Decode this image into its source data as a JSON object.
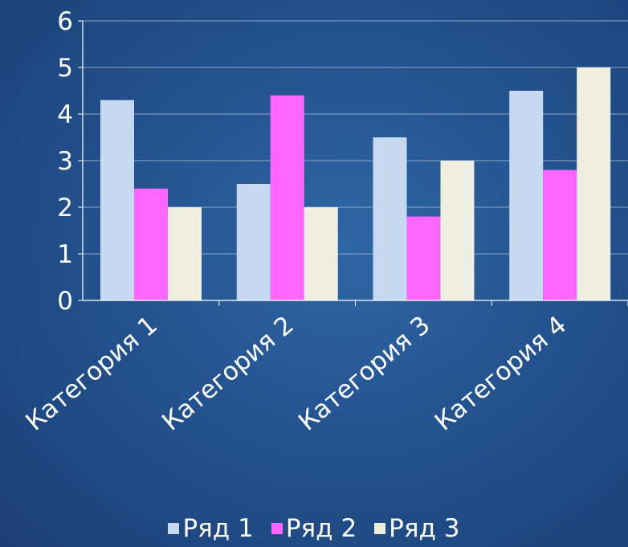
{
  "chart_data": {
    "type": "bar",
    "categories": [
      "Категория 1",
      "Категория 2",
      "Категория 3",
      "Категория 4"
    ],
    "series": [
      {
        "name": "Ряд 1",
        "values": [
          4.3,
          2.5,
          3.5,
          4.5
        ],
        "color": "#c6d9f1"
      },
      {
        "name": "Ряд 2",
        "values": [
          2.4,
          4.4,
          1.8,
          2.8
        ],
        "color": "#ff66ff"
      },
      {
        "name": "Ряд 3",
        "values": [
          2,
          2,
          3,
          5
        ],
        "color": "#eeefe0"
      }
    ],
    "y_ticks": [
      "0",
      "1",
      "2",
      "3",
      "4",
      "5",
      "6"
    ],
    "ylim": [
      0,
      6
    ],
    "grid": true,
    "legend_position": "bottom",
    "title": "",
    "xlabel": "",
    "ylabel": ""
  }
}
